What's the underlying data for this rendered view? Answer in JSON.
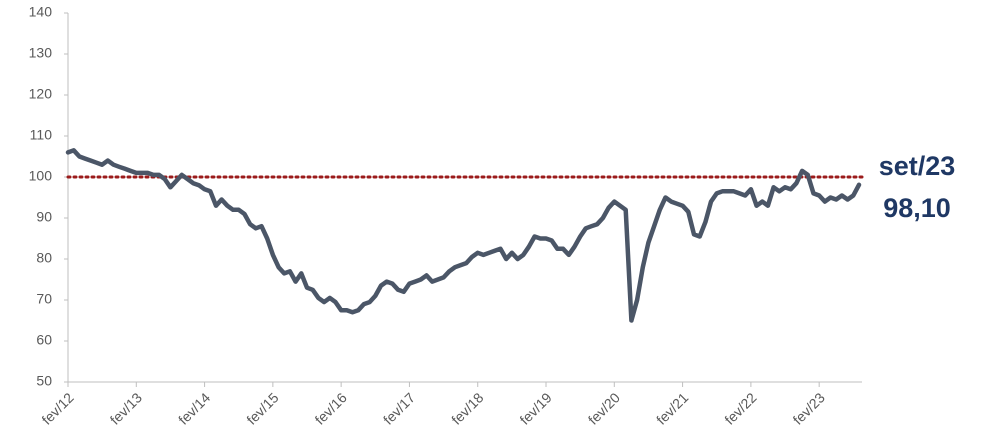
{
  "chart_data": {
    "type": "line",
    "categories": [
      "fev/12",
      null,
      null,
      null,
      null,
      null,
      null,
      null,
      null,
      null,
      null,
      null,
      "fev/13",
      null,
      null,
      null,
      null,
      null,
      null,
      null,
      null,
      null,
      null,
      null,
      "fev/14",
      null,
      null,
      null,
      null,
      null,
      null,
      null,
      null,
      null,
      null,
      null,
      "fev/15",
      null,
      null,
      null,
      null,
      null,
      null,
      null,
      null,
      null,
      null,
      null,
      "fev/16",
      null,
      null,
      null,
      null,
      null,
      null,
      null,
      null,
      null,
      null,
      null,
      "fev/17",
      null,
      null,
      null,
      null,
      null,
      null,
      null,
      null,
      null,
      null,
      null,
      "fev/18",
      null,
      null,
      null,
      null,
      null,
      null,
      null,
      null,
      null,
      null,
      null,
      "fev/19",
      null,
      null,
      null,
      null,
      null,
      null,
      null,
      null,
      null,
      null,
      null,
      "fev/20",
      null,
      null,
      null,
      null,
      null,
      null,
      null,
      null,
      null,
      null,
      null,
      "fev/21",
      null,
      null,
      null,
      null,
      null,
      null,
      null,
      null,
      null,
      null,
      null,
      "fev/22",
      null,
      null,
      null,
      null,
      null,
      null,
      null,
      null,
      null,
      null,
      null,
      "fev/23",
      null,
      null,
      null,
      null,
      null,
      null,
      null
    ],
    "values": [
      106,
      106.5,
      105,
      104.5,
      104,
      103.5,
      103,
      104,
      103,
      102.5,
      102,
      101.5,
      101,
      101,
      101,
      100.5,
      100.5,
      99.5,
      97.5,
      99,
      100.5,
      99.5,
      98.5,
      98,
      97,
      96.5,
      93,
      94.5,
      93,
      92,
      92,
      91,
      88.5,
      87.5,
      88,
      85,
      81,
      78,
      76.5,
      77,
      74.5,
      76.5,
      73,
      72.5,
      70.5,
      69.5,
      70.5,
      69.5,
      67.5,
      67.5,
      67,
      67.5,
      69,
      69.5,
      71,
      73.5,
      74.5,
      74,
      72.5,
      72,
      74,
      74.5,
      75,
      76,
      74.5,
      75,
      75.5,
      77,
      78,
      78.5,
      79,
      80.5,
      81.5,
      81,
      81.5,
      82,
      82.5,
      80,
      81.5,
      80,
      81,
      83,
      85.5,
      85,
      85,
      84.5,
      82.5,
      82.5,
      81,
      83,
      85.5,
      87.5,
      88,
      88.5,
      90,
      92.5,
      94,
      93,
      92,
      65,
      70,
      78,
      84,
      88,
      92,
      95,
      94,
      93.5,
      93,
      91.5,
      86,
      85.5,
      89,
      94,
      96,
      96.5,
      96.5,
      96.5,
      96,
      95.5,
      97,
      93,
      94,
      93,
      97.5,
      96.5,
      97.5,
      97,
      98.5,
      101.5,
      100.5,
      96,
      95.5,
      94,
      95,
      94.5,
      95.5,
      94.5,
      95.5,
      98.1
    ],
    "color": "#4b5667",
    "ylim": [
      50,
      140
    ],
    "yticks": [
      50,
      60,
      70,
      80,
      90,
      100,
      110,
      120,
      130,
      140
    ],
    "reference_line": {
      "value": 100,
      "color": "#9b1b1b"
    },
    "annotation": {
      "date": "set/23",
      "value": 98.1,
      "label": "98,10",
      "color": "#1f3864"
    }
  }
}
